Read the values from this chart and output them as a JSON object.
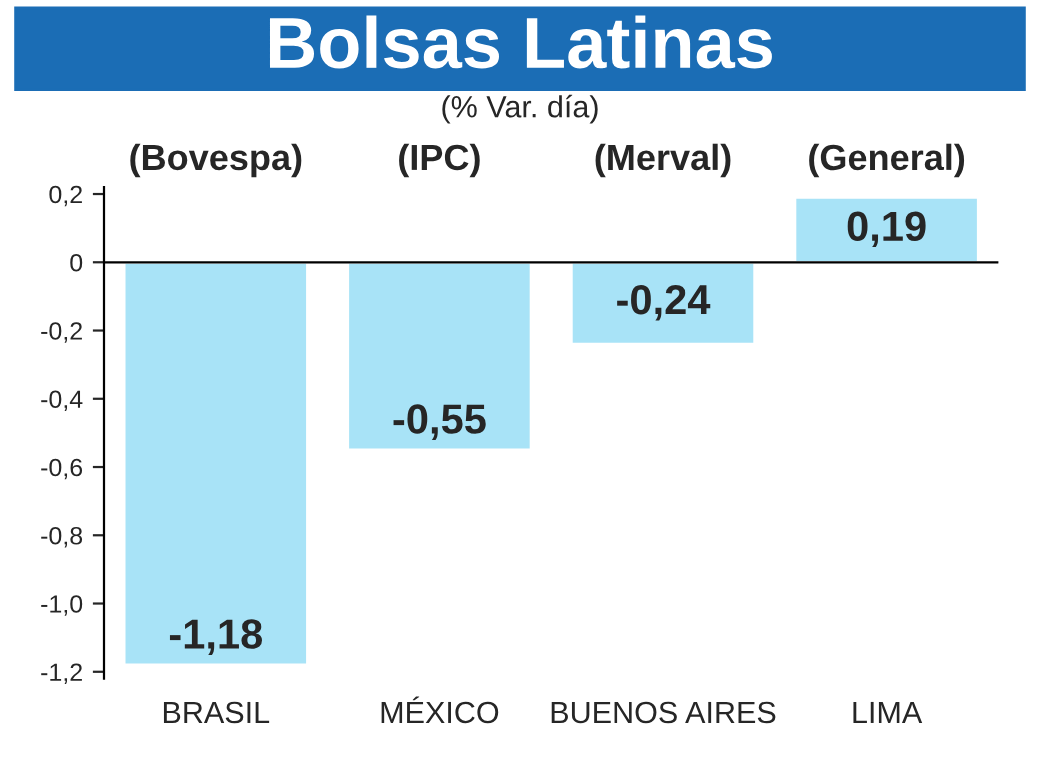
{
  "chart_data": {
    "type": "bar",
    "title": "Bolsas Latinas",
    "subtitle": "(% Var. día)",
    "categories": [
      "BRASIL",
      "MÉXICO",
      "BUENOS AIRES",
      "LIMA"
    ],
    "values": [
      -1.18,
      -0.55,
      -0.24,
      0.19
    ],
    "value_labels": [
      "-1,18",
      "-0,55",
      "-0,24",
      "0,19"
    ],
    "color": "#a8e3f7",
    "annotations": [
      "(Bovespa)",
      "(IPC)",
      "(Merval)",
      "(General)"
    ],
    "ylim": [
      -1.22,
      0.22
    ],
    "yticks": [
      {
        "value": 0.2,
        "label": "0,2"
      },
      {
        "value": 0,
        "label": "0"
      },
      {
        "value": -0.2,
        "label": "-0,2"
      },
      {
        "value": -0.4,
        "label": "-0,4"
      },
      {
        "value": -0.6,
        "label": "-0,6"
      },
      {
        "value": -0.8,
        "label": "-0,8"
      },
      {
        "value": -1.0,
        "label": "-1,0"
      },
      {
        "value": -1.2,
        "label": "-1,2"
      }
    ],
    "ref_lines": [
      {
        "axis": "y",
        "value": 0,
        "color": "#000000"
      }
    ]
  }
}
